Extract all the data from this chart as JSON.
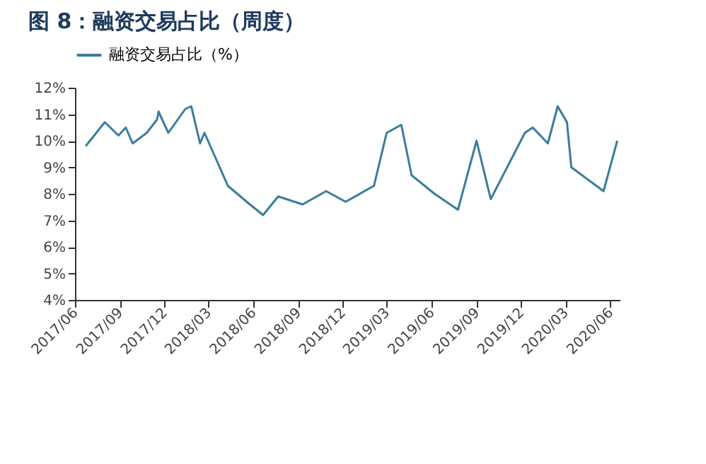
{
  "chart_data": {
    "type": "line",
    "title": "图 8：融资交易占比（周度）",
    "x": [
      "2017-06-23",
      "2017-08-01",
      "2017-08-29",
      "2017-09-13",
      "2017-09-27",
      "2017-10-26",
      "2017-11-16",
      "2017-11-19",
      "2017-12-09",
      "2018-01-13",
      "2018-01-25",
      "2018-02-12",
      "2018-02-21",
      "2018-04-10",
      "2018-05-25",
      "2018-06-21",
      "2018-07-22",
      "2018-09-10",
      "2018-10-28",
      "2018-12-07",
      "2019-02-03",
      "2019-03-01",
      "2019-03-31",
      "2019-04-21",
      "2019-06-07",
      "2019-07-25",
      "2019-09-01",
      "2019-09-30",
      "2019-12-09",
      "2019-12-25",
      "2020-01-25",
      "2020-02-14",
      "2020-03-04",
      "2020-03-13",
      "2020-05-18",
      "2020-06-15"
    ],
    "series": [
      {
        "name": "融资交易占比（%）",
        "color": "#3a7d9c",
        "values": [
          9.8,
          10.7,
          10.2,
          10.5,
          9.9,
          10.3,
          10.8,
          11.1,
          10.3,
          11.2,
          11.3,
          9.9,
          10.3,
          8.3,
          7.6,
          7.2,
          7.9,
          7.6,
          8.1,
          7.7,
          8.3,
          10.3,
          10.6,
          8.7,
          8.0,
          7.4,
          10.0,
          7.8,
          10.3,
          10.5,
          9.9,
          11.3,
          10.7,
          9.0,
          8.1,
          10.0
        ]
      }
    ],
    "xlim": [
      "2017-06-01",
      "2020-06-20"
    ],
    "xticks": [
      {
        "value": "2017-06",
        "label": "2017/06"
      },
      {
        "value": "2017-09",
        "label": "2017/09"
      },
      {
        "value": "2017-12",
        "label": "2017/12"
      },
      {
        "value": "2018-03",
        "label": "2018/03"
      },
      {
        "value": "2018-06",
        "label": "2018/06"
      },
      {
        "value": "2018-09",
        "label": "2018/09"
      },
      {
        "value": "2018-12",
        "label": "2018/12"
      },
      {
        "value": "2019-03",
        "label": "2019/03"
      },
      {
        "value": "2019-06",
        "label": "2019/06"
      },
      {
        "value": "2019-09",
        "label": "2019/09"
      },
      {
        "value": "2019-12",
        "label": "2019/12"
      },
      {
        "value": "2020-03",
        "label": "2020/03"
      },
      {
        "value": "2020-06",
        "label": "2020/06"
      }
    ],
    "ylim": [
      4,
      12
    ],
    "yticks": [
      {
        "value": 4,
        "label": "4%"
      },
      {
        "value": 5,
        "label": "5%"
      },
      {
        "value": 6,
        "label": "6%"
      },
      {
        "value": 7,
        "label": "7%"
      },
      {
        "value": 8,
        "label": "8%"
      },
      {
        "value": 9,
        "label": "9%"
      },
      {
        "value": 10,
        "label": "10%"
      },
      {
        "value": 11,
        "label": "11%"
      },
      {
        "value": 12,
        "label": "12%"
      }
    ],
    "grid": false,
    "legend": "top",
    "marker": "none",
    "line_style": "solid"
  }
}
